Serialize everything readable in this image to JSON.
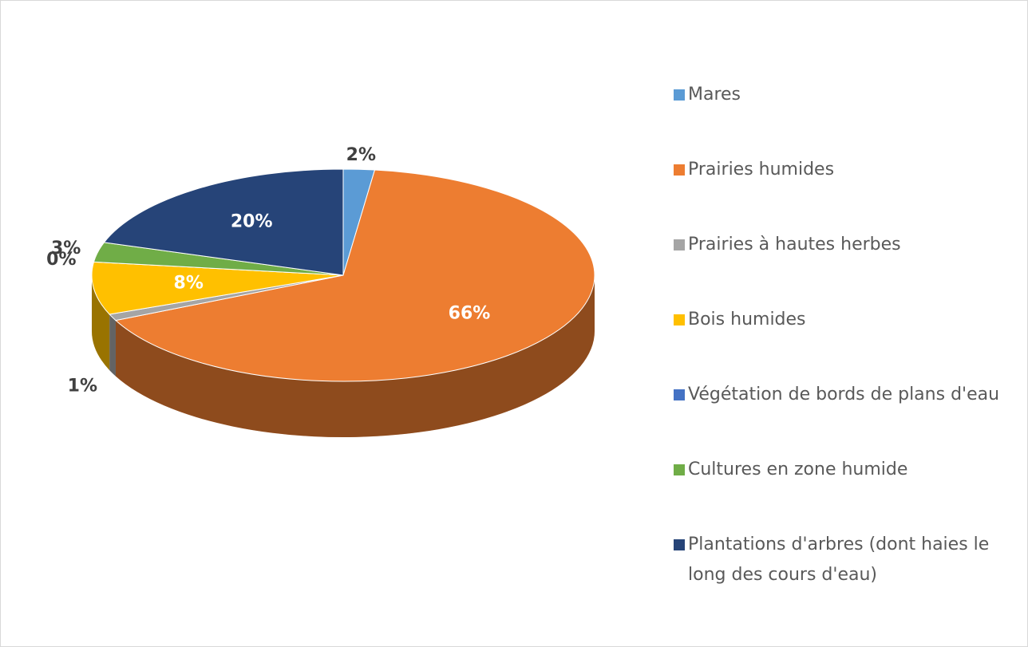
{
  "chart_data": {
    "type": "pie",
    "categories": [
      "Mares",
      "Prairies humides",
      "Prairies à hautes herbes",
      "Bois humides",
      "Végétation de bords de plans d'eau",
      "Cultures en zone humide",
      "Plantations d'arbres (dont haies le long des cours d'eau)"
    ],
    "values": [
      2,
      66,
      1,
      8,
      0,
      3,
      20
    ],
    "value_labels": [
      "2%",
      "66%",
      "1%",
      "8%",
      "0%",
      "3%",
      "20%"
    ],
    "colors": [
      "#5b9bd5",
      "#ed7d31",
      "#a5a5a5",
      "#ffc000",
      "#4472c4",
      "#70ad47",
      "#264478"
    ],
    "legend": "right"
  }
}
